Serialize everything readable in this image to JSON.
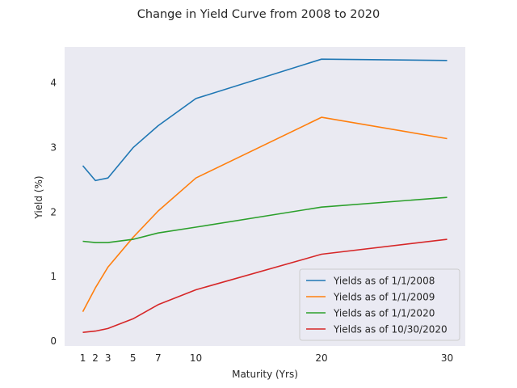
{
  "chart_data": {
    "type": "line",
    "title": "Change in Yield Curve from 2008 to 2020",
    "xlabel": "Maturity (Yrs)",
    "ylabel": "Yield (%)",
    "x": [
      1,
      2,
      3,
      5,
      7,
      10,
      20,
      30
    ],
    "x_ticks": [
      1,
      2,
      3,
      5,
      7,
      10,
      20,
      30
    ],
    "y_ticks": [
      0,
      1,
      2,
      3,
      4
    ],
    "xlim": [
      -0.45,
      31.45
    ],
    "ylim": [
      -0.08,
      4.55
    ],
    "grid": false,
    "legend_position": "lower-right",
    "background_color": "#eaeaf2",
    "series": [
      {
        "name": "Yields as of 1/1/2008",
        "color": "#1f77b4",
        "values": [
          2.71,
          2.48,
          2.52,
          2.99,
          3.33,
          3.75,
          4.36,
          4.34
        ]
      },
      {
        "name": "Yields as of 1/1/2009",
        "color": "#ff7f0e",
        "values": [
          0.45,
          0.82,
          1.14,
          1.6,
          2.01,
          2.52,
          3.46,
          3.13
        ]
      },
      {
        "name": "Yields as of 1/1/2020",
        "color": "#2ca02c",
        "values": [
          1.54,
          1.52,
          1.52,
          1.57,
          1.67,
          1.76,
          2.07,
          2.22
        ]
      },
      {
        "name": "Yields as of 10/30/2020",
        "color": "#d62728",
        "values": [
          0.13,
          0.15,
          0.19,
          0.34,
          0.56,
          0.79,
          1.34,
          1.57
        ]
      }
    ]
  }
}
